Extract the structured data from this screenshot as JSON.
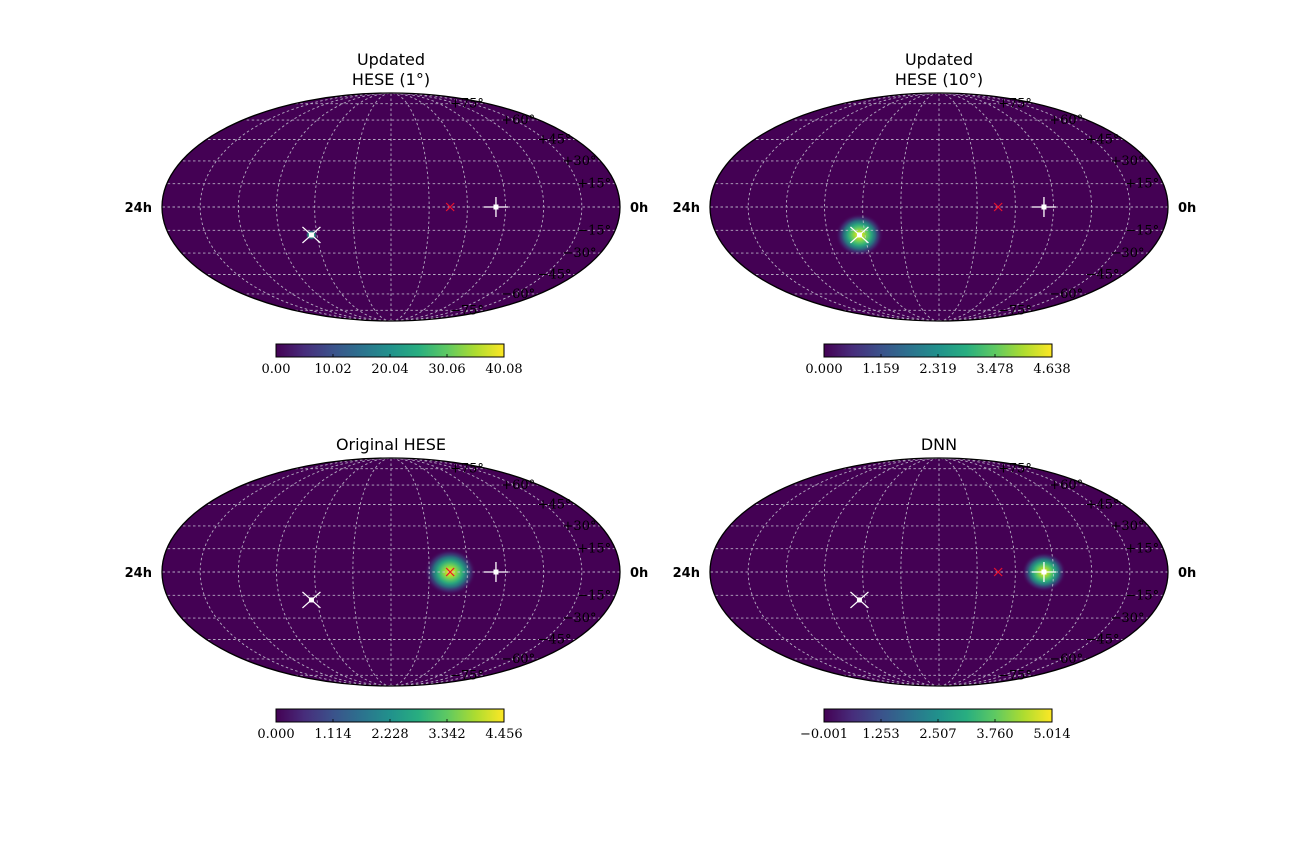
{
  "colors": {
    "background_map": "#440154",
    "grid": "#c9c9d6",
    "event_marker": "#ffffff",
    "source_marker": "#e8112d",
    "colormap": [
      "#440154",
      "#472d7b",
      "#3b528b",
      "#2c728e",
      "#21918c",
      "#28ae80",
      "#5ec962",
      "#addc30",
      "#fde725"
    ]
  },
  "chart_data": [
    {
      "type": "heatmap",
      "projection": "mollweide",
      "title_lines": [
        "Updated",
        "HESE (1°)"
      ],
      "dec_labels": [
        "+75°",
        "+60°",
        "+45°",
        "+30°",
        "+15°",
        "−15°",
        "−30°",
        "−45°",
        "−60°",
        "−75°"
      ],
      "ra_left": "24h",
      "ra_right": "0h",
      "colorbar_ticks": [
        "0.00",
        "10.02",
        "20.04",
        "30.06",
        "40.08"
      ],
      "colorbar_range": [
        0.0,
        40.08
      ],
      "hotspot": {
        "ra_h": 7.7,
        "dec": -18,
        "sigma_deg": 1.6,
        "peak": 40.08
      },
      "markers": [
        {
          "kind": "plus",
          "ra_h": 17.5,
          "dec": 0
        },
        {
          "kind": "x-white",
          "ra_h": 7.7,
          "dec": -18
        },
        {
          "kind": "x-red",
          "ra_h": 15.1,
          "dec": 0
        }
      ]
    },
    {
      "type": "heatmap",
      "projection": "mollweide",
      "title_lines": [
        "Updated",
        "HESE (10°)"
      ],
      "dec_labels": [
        "+75°",
        "+60°",
        "+45°",
        "+30°",
        "+15°",
        "−15°",
        "−30°",
        "−45°",
        "−60°",
        "−75°"
      ],
      "ra_left": "24h",
      "ra_right": "0h",
      "colorbar_ticks": [
        "0.000",
        "1.159",
        "2.319",
        "3.478",
        "4.638"
      ],
      "colorbar_range": [
        0.0,
        4.638
      ],
      "hotspot": {
        "ra_h": 7.7,
        "dec": -18,
        "sigma_deg": 6.5,
        "peak": 4.638
      },
      "markers": [
        {
          "kind": "plus",
          "ra_h": 17.5,
          "dec": 0
        },
        {
          "kind": "x-white",
          "ra_h": 7.7,
          "dec": -18
        },
        {
          "kind": "x-red",
          "ra_h": 15.1,
          "dec": 0
        }
      ]
    },
    {
      "type": "heatmap",
      "projection": "mollweide",
      "title_lines": [
        "Original HESE"
      ],
      "dec_labels": [
        "+75°",
        "+60°",
        "+45°",
        "+30°",
        "+15°",
        "−15°",
        "−30°",
        "−45°",
        "−60°",
        "−75°"
      ],
      "ra_left": "24h",
      "ra_right": "0h",
      "colorbar_ticks": [
        "0.000",
        "1.114",
        "2.228",
        "3.342",
        "4.456"
      ],
      "colorbar_range": [
        0.0,
        4.456
      ],
      "hotspot": {
        "ra_h": 15.1,
        "dec": 0,
        "sigma_deg": 7.0,
        "peak": 4.456
      },
      "markers": [
        {
          "kind": "plus",
          "ra_h": 17.5,
          "dec": 0
        },
        {
          "kind": "x-white",
          "ra_h": 7.7,
          "dec": -18
        },
        {
          "kind": "x-red",
          "ra_h": 15.1,
          "dec": 0
        }
      ]
    },
    {
      "type": "heatmap",
      "projection": "mollweide",
      "title_lines": [
        "DNN"
      ],
      "dec_labels": [
        "+75°",
        "+60°",
        "+45°",
        "+30°",
        "+15°",
        "−15°",
        "−30°",
        "−45°",
        "−60°",
        "−75°"
      ],
      "ra_left": "24h",
      "ra_right": "0h",
      "colorbar_ticks": [
        "−0.001",
        "1.253",
        "2.507",
        "3.760",
        "5.014"
      ],
      "colorbar_range": [
        -0.001,
        5.014
      ],
      "hotspot": {
        "ra_h": 17.5,
        "dec": 0,
        "sigma_deg": 6.0,
        "peak": 5.014
      },
      "markers": [
        {
          "kind": "plus",
          "ra_h": 17.5,
          "dec": 0
        },
        {
          "kind": "x-white",
          "ra_h": 7.7,
          "dec": -18
        },
        {
          "kind": "x-red",
          "ra_h": 15.1,
          "dec": 0
        }
      ]
    }
  ]
}
